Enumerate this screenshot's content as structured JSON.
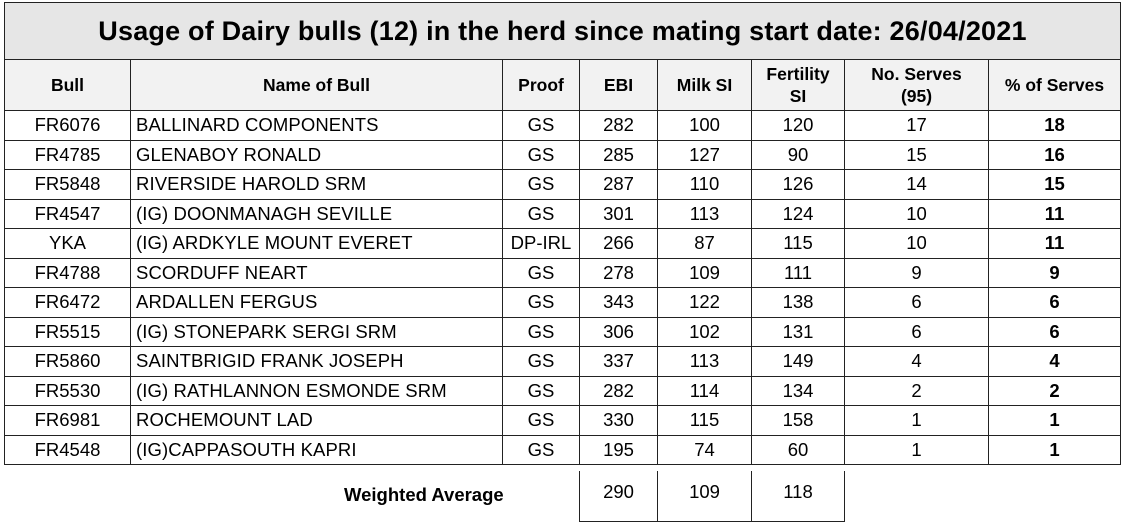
{
  "title": "Usage of Dairy bulls (12) in the herd since mating start date: 26/04/2021",
  "columns": {
    "bull": "Bull",
    "name": "Name of Bull",
    "proof": "Proof",
    "ebi": "EBI",
    "milk_si": "Milk SI",
    "fertility_si_line1": "Fertility",
    "fertility_si_line2": "SI",
    "no_serves_line1": "No. Serves",
    "no_serves_line2": "(95)",
    "pct_serves": "% of Serves"
  },
  "rows": [
    {
      "bull": "FR6076",
      "name": "BALLINARD COMPONENTS",
      "proof": "GS",
      "ebi": "282",
      "milk_si": "100",
      "fertility_si": "120",
      "no_serves": "17",
      "pct_serves": "18"
    },
    {
      "bull": "FR4785",
      "name": "GLENABOY RONALD",
      "proof": "GS",
      "ebi": "285",
      "milk_si": "127",
      "fertility_si": "90",
      "no_serves": "15",
      "pct_serves": "16"
    },
    {
      "bull": "FR5848",
      "name": "RIVERSIDE HAROLD SRM",
      "proof": "GS",
      "ebi": "287",
      "milk_si": "110",
      "fertility_si": "126",
      "no_serves": "14",
      "pct_serves": "15"
    },
    {
      "bull": "FR4547",
      "name": "(IG) DOONMANAGH SEVILLE",
      "proof": "GS",
      "ebi": "301",
      "milk_si": "113",
      "fertility_si": "124",
      "no_serves": "10",
      "pct_serves": "11"
    },
    {
      "bull": "YKA",
      "name": "(IG) ARDKYLE MOUNT EVERET",
      "proof": "DP-IRL",
      "ebi": "266",
      "milk_si": "87",
      "fertility_si": "115",
      "no_serves": "10",
      "pct_serves": "11"
    },
    {
      "bull": "FR4788",
      "name": "SCORDUFF NEART",
      "proof": "GS",
      "ebi": "278",
      "milk_si": "109",
      "fertility_si": "111",
      "no_serves": "9",
      "pct_serves": "9"
    },
    {
      "bull": "FR6472",
      "name": "ARDALLEN FERGUS",
      "proof": "GS",
      "ebi": "343",
      "milk_si": "122",
      "fertility_si": "138",
      "no_serves": "6",
      "pct_serves": "6"
    },
    {
      "bull": "FR5515",
      "name": "(IG) STONEPARK SERGI SRM",
      "proof": "GS",
      "ebi": "306",
      "milk_si": "102",
      "fertility_si": "131",
      "no_serves": "6",
      "pct_serves": "6"
    },
    {
      "bull": "FR5860",
      "name": "SAINTBRIGID FRANK JOSEPH",
      "proof": "GS",
      "ebi": "337",
      "milk_si": "113",
      "fertility_si": "149",
      "no_serves": "4",
      "pct_serves": "4"
    },
    {
      "bull": "FR5530",
      "name": "(IG) RATHLANNON ESMONDE SRM",
      "proof": "GS",
      "ebi": "282",
      "milk_si": "114",
      "fertility_si": "134",
      "no_serves": "2",
      "pct_serves": "2"
    },
    {
      "bull": "FR6981",
      "name": "ROCHEMOUNT LAD",
      "proof": "GS",
      "ebi": "330",
      "milk_si": "115",
      "fertility_si": "158",
      "no_serves": "1",
      "pct_serves": "1"
    },
    {
      "bull": "FR4548",
      "name": "(IG)CAPPASOUTH KAPRI",
      "proof": "GS",
      "ebi": "195",
      "milk_si": "74",
      "fertility_si": "60",
      "no_serves": "1",
      "pct_serves": "1"
    }
  ],
  "weighted_average": {
    "label": "Weighted Average",
    "ebi": "290",
    "milk_si": "109",
    "fertility_si": "118"
  }
}
